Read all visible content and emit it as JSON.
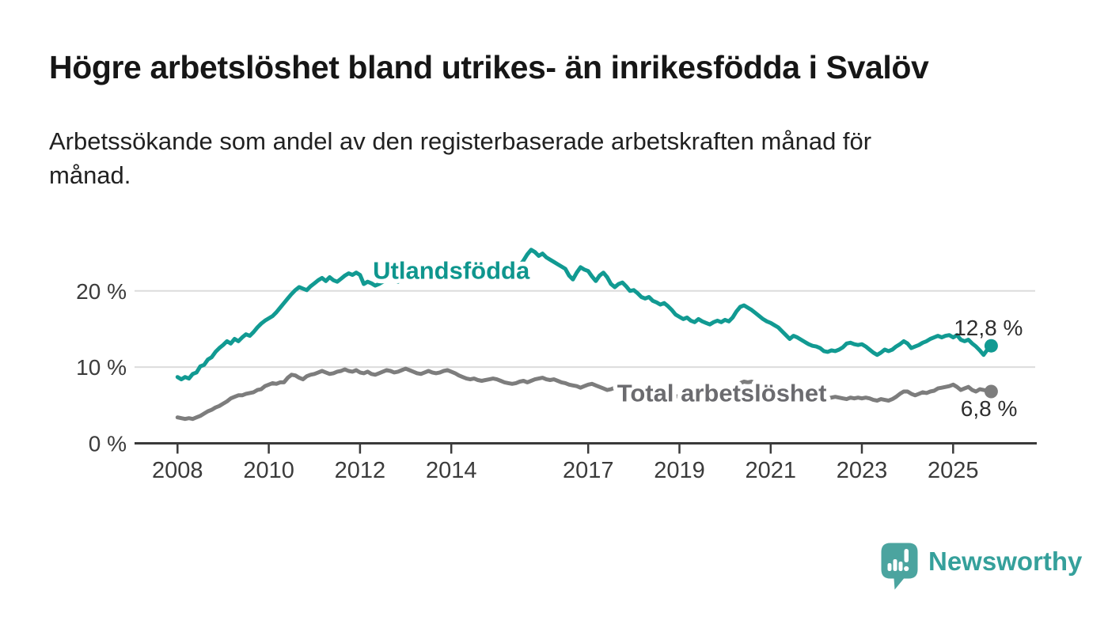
{
  "header": {
    "title": "Högre arbetslöshet bland utrikes- än inrikesfödda i Svalöv",
    "subtitle": "Arbetssökande som andel av den registerbaserade arbetskraften månad för\nmånad."
  },
  "chart_data": {
    "type": "line",
    "title": "Högre arbetslöshet bland utrikes- än inrikesfödda i Svalöv",
    "unit": "%",
    "grid": "horizontal",
    "x": {
      "start_year": 2008,
      "interval_months": 1,
      "x_end": "2025-11",
      "tick_years": [
        2008,
        2010,
        2012,
        2014,
        2017,
        2019,
        2021,
        2023,
        2025
      ]
    },
    "y": {
      "ylim": [
        0,
        27
      ],
      "gridlines": [
        10,
        20
      ],
      "ticks": [
        {
          "value": 0,
          "label": "0 %"
        },
        {
          "value": 10,
          "label": "10 %"
        },
        {
          "value": 20,
          "label": "20 %"
        }
      ]
    },
    "series": [
      {
        "name": "Utlandsfödda",
        "color": "#119a92",
        "label_color": "#0f968e",
        "end_value": 12.8,
        "end_label": "12,8 %",
        "end_side": "above",
        "inline_label": {
          "year": 2014.0,
          "value": 21.6
        },
        "values": [
          8.7,
          8.4,
          8.7,
          8.5,
          9.1,
          9.3,
          10.1,
          10.3,
          11.0,
          11.3,
          12.0,
          12.5,
          12.9,
          13.4,
          13.1,
          13.7,
          13.4,
          13.9,
          14.3,
          14.1,
          14.6,
          15.2,
          15.7,
          16.1,
          16.4,
          16.7,
          17.2,
          17.8,
          18.4,
          19.0,
          19.6,
          20.1,
          20.5,
          20.3,
          20.1,
          20.6,
          21.0,
          21.4,
          21.7,
          21.3,
          21.8,
          21.4,
          21.2,
          21.6,
          22.0,
          22.3,
          22.1,
          22.4,
          22.1,
          20.9,
          21.2,
          21.0,
          20.7,
          20.9,
          21.2,
          21.5,
          21.7,
          21.5,
          21.2,
          21.6,
          21.9,
          22.3,
          22.5,
          22.1,
          21.8,
          22.0,
          22.3,
          22.6,
          22.4,
          22.1,
          22.3,
          22.6,
          22.8,
          23.0,
          22.6,
          22.2,
          22.4,
          22.1,
          22.3,
          22.6,
          22.9,
          23.2,
          23.0,
          22.8,
          22.7,
          23.0,
          23.2,
          23.4,
          23.1,
          22.9,
          23.3,
          24.0,
          24.8,
          25.4,
          25.1,
          24.6,
          24.9,
          24.4,
          24.1,
          23.8,
          23.5,
          23.2,
          22.9,
          22.0,
          21.5,
          22.4,
          23.1,
          22.8,
          22.6,
          21.9,
          21.3,
          22.0,
          22.4,
          21.8,
          20.9,
          20.5,
          20.9,
          21.1,
          20.6,
          20.0,
          20.1,
          19.7,
          19.2,
          19.0,
          19.2,
          18.7,
          18.5,
          18.2,
          18.4,
          18.0,
          17.5,
          16.9,
          16.6,
          16.3,
          16.5,
          16.1,
          15.9,
          16.3,
          16.0,
          15.8,
          15.6,
          15.9,
          16.1,
          15.9,
          16.2,
          16.0,
          16.5,
          17.3,
          17.9,
          18.1,
          17.8,
          17.5,
          17.1,
          16.7,
          16.3,
          16.0,
          15.8,
          15.5,
          15.2,
          14.7,
          14.2,
          13.7,
          14.1,
          13.9,
          13.6,
          13.3,
          13.0,
          12.8,
          12.7,
          12.5,
          12.1,
          12.0,
          12.2,
          12.1,
          12.3,
          12.6,
          13.1,
          13.2,
          13.0,
          12.9,
          13.0,
          12.7,
          12.3,
          11.9,
          11.6,
          11.9,
          12.3,
          12.1,
          12.3,
          12.7,
          13.0,
          13.4,
          13.1,
          12.5,
          12.7,
          12.9,
          13.2,
          13.4,
          13.7,
          13.9,
          14.1,
          13.9,
          14.1,
          14.2,
          13.9,
          14.2,
          13.6,
          13.4,
          13.6,
          13.1,
          12.7,
          12.2,
          11.6,
          12.3,
          12.8
        ]
      },
      {
        "name": "Total arbetslöshet",
        "color": "#7d7d7d",
        "label_color": "#6b6b6f",
        "end_value": 6.8,
        "end_label": "6,8 %",
        "end_side": "below",
        "inline_label": {
          "year": 2019.93,
          "value": 5.5
        },
        "values": [
          3.4,
          3.3,
          3.2,
          3.3,
          3.2,
          3.4,
          3.6,
          3.9,
          4.2,
          4.4,
          4.7,
          4.9,
          5.2,
          5.5,
          5.9,
          6.1,
          6.3,
          6.3,
          6.5,
          6.6,
          6.7,
          7.0,
          7.1,
          7.5,
          7.7,
          7.9,
          7.8,
          8.0,
          8.0,
          8.6,
          9.0,
          8.9,
          8.6,
          8.4,
          8.8,
          9.0,
          9.1,
          9.3,
          9.5,
          9.3,
          9.1,
          9.2,
          9.4,
          9.5,
          9.7,
          9.5,
          9.4,
          9.6,
          9.3,
          9.2,
          9.4,
          9.1,
          9.0,
          9.2,
          9.4,
          9.6,
          9.5,
          9.3,
          9.4,
          9.6,
          9.8,
          9.6,
          9.4,
          9.2,
          9.1,
          9.3,
          9.5,
          9.3,
          9.2,
          9.3,
          9.5,
          9.6,
          9.4,
          9.2,
          8.9,
          8.7,
          8.5,
          8.4,
          8.5,
          8.3,
          8.2,
          8.3,
          8.4,
          8.5,
          8.4,
          8.2,
          8.0,
          7.9,
          7.8,
          7.9,
          8.1,
          8.2,
          8.0,
          8.2,
          8.4,
          8.5,
          8.6,
          8.4,
          8.3,
          8.4,
          8.2,
          8.0,
          7.9,
          7.7,
          7.6,
          7.5,
          7.3,
          7.5,
          7.7,
          7.8,
          7.6,
          7.4,
          7.2,
          7.0,
          7.1,
          7.3,
          7.2,
          7.0,
          6.8,
          6.7,
          6.6,
          6.7,
          6.8,
          6.6,
          6.4,
          6.3,
          6.4,
          6.5,
          6.4,
          6.2,
          6.1,
          6.2,
          6.1,
          6.2,
          6.3,
          6.1,
          6.0,
          5.9,
          6.0,
          6.1,
          6.2,
          6.1,
          6.2,
          6.4,
          6.5,
          6.7,
          7.0,
          7.5,
          7.9,
          8.1,
          8.0,
          8.1,
          7.9,
          7.6,
          7.3,
          7.1,
          7.0,
          6.9,
          6.7,
          6.6,
          6.4,
          6.3,
          6.4,
          6.3,
          6.1,
          6.0,
          5.9,
          5.9,
          5.8,
          5.9,
          5.8,
          5.9,
          6.0,
          6.1,
          6.0,
          5.9,
          5.8,
          6.0,
          5.9,
          6.0,
          5.9,
          6.0,
          5.9,
          5.7,
          5.6,
          5.8,
          5.7,
          5.6,
          5.8,
          6.1,
          6.5,
          6.8,
          6.8,
          6.5,
          6.3,
          6.5,
          6.7,
          6.6,
          6.8,
          6.9,
          7.2,
          7.3,
          7.4,
          7.5,
          7.7,
          7.4,
          7.0,
          7.2,
          7.4,
          7.0,
          6.8,
          7.1,
          7.0,
          6.9,
          6.8
        ]
      }
    ],
    "style": {
      "axis_color": "#3a3a3a",
      "tick_label_color": "#3b3b3b",
      "grid_color": "#dcdcdc",
      "value_label_color": "#2e2e2e",
      "background": "#ffffff"
    }
  },
  "branding": {
    "logo_text": "Newsworthy",
    "logo_color": "#4ba49f"
  }
}
